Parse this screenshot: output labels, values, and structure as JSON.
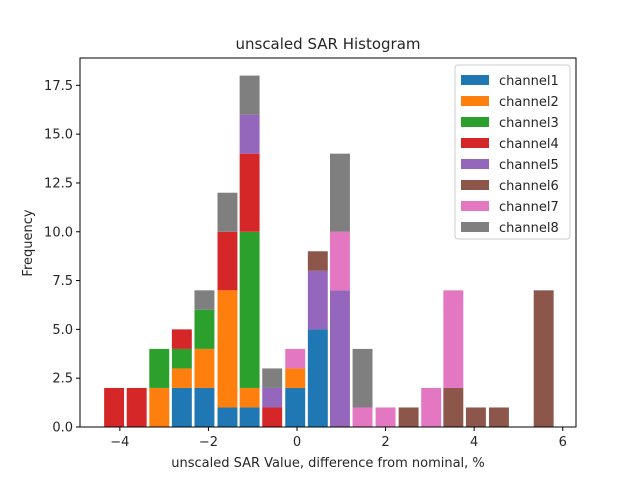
{
  "chart_data": {
    "type": "bar",
    "stacked": true,
    "title": "unscaled SAR Histogram",
    "xlabel": "unscaled SAR Value, difference from nominal, %",
    "ylabel": "Frequency",
    "xlim": [
      -4.9,
      6.3
    ],
    "ylim": [
      0,
      18.9
    ],
    "xticks": [
      -4,
      -2,
      0,
      2,
      4,
      6
    ],
    "xtick_labels": [
      "−4",
      "−2",
      "0",
      "2",
      "4",
      "6"
    ],
    "yticks": [
      0,
      2.5,
      5,
      7.5,
      10,
      12.5,
      15,
      17.5
    ],
    "ytick_labels": [
      "0.0",
      "2.5",
      "5.0",
      "7.5",
      "10.0",
      "12.5",
      "15.0",
      "17.5"
    ],
    "bin_width": 0.45,
    "bin_centers": [
      -4.13,
      -3.62,
      -3.11,
      -2.6,
      -2.09,
      -1.57,
      -1.07,
      -0.56,
      -0.04,
      0.47,
      0.97,
      1.48,
      2.0,
      2.52,
      3.03,
      3.53,
      4.04,
      4.56,
      5.57
    ],
    "series": [
      {
        "name": "channel1",
        "color": "#1f77b4",
        "values": [
          0,
          0,
          0,
          2,
          2,
          1,
          1,
          0,
          2,
          5,
          0,
          0,
          0,
          0,
          0,
          0,
          0,
          0,
          0
        ]
      },
      {
        "name": "channel2",
        "color": "#ff7f0e",
        "values": [
          0,
          0,
          2,
          1,
          2,
          6,
          1,
          0,
          1,
          0,
          0,
          0,
          0,
          0,
          0,
          0,
          0,
          0,
          0
        ]
      },
      {
        "name": "channel3",
        "color": "#2ca02c",
        "values": [
          0,
          0,
          2,
          1,
          2,
          0,
          8,
          0,
          0,
          0,
          0,
          0,
          0,
          0,
          0,
          0,
          0,
          0,
          0
        ]
      },
      {
        "name": "channel4",
        "color": "#d62728",
        "values": [
          2,
          2,
          0,
          1,
          0,
          3,
          4,
          1,
          0,
          0,
          0,
          0,
          0,
          0,
          0,
          0,
          0,
          0,
          0
        ]
      },
      {
        "name": "channel5",
        "color": "#9467bd",
        "values": [
          0,
          0,
          0,
          0,
          0,
          0,
          2,
          1,
          0,
          3,
          7,
          0,
          0,
          0,
          0,
          0,
          0,
          0,
          0
        ]
      },
      {
        "name": "channel6",
        "color": "#8c564b",
        "values": [
          0,
          0,
          0,
          0,
          0,
          0,
          0,
          0,
          0,
          1,
          0,
          0,
          0,
          1,
          0,
          2,
          1,
          1,
          7
        ]
      },
      {
        "name": "channel7",
        "color": "#e377c2",
        "values": [
          0,
          0,
          0,
          0,
          0,
          0,
          0,
          0,
          1,
          0,
          3,
          1,
          1,
          0,
          2,
          5,
          0,
          0,
          0
        ]
      },
      {
        "name": "channel8",
        "color": "#7f7f7f",
        "values": [
          0,
          0,
          0,
          0,
          1,
          2,
          2,
          1,
          0,
          0,
          4,
          3,
          0,
          0,
          0,
          0,
          0,
          0,
          0
        ]
      }
    ],
    "legend": {
      "placement": "top-right",
      "entries": [
        "channel1",
        "channel2",
        "channel3",
        "channel4",
        "channel5",
        "channel6",
        "channel7",
        "channel8"
      ]
    },
    "grid": false
  }
}
